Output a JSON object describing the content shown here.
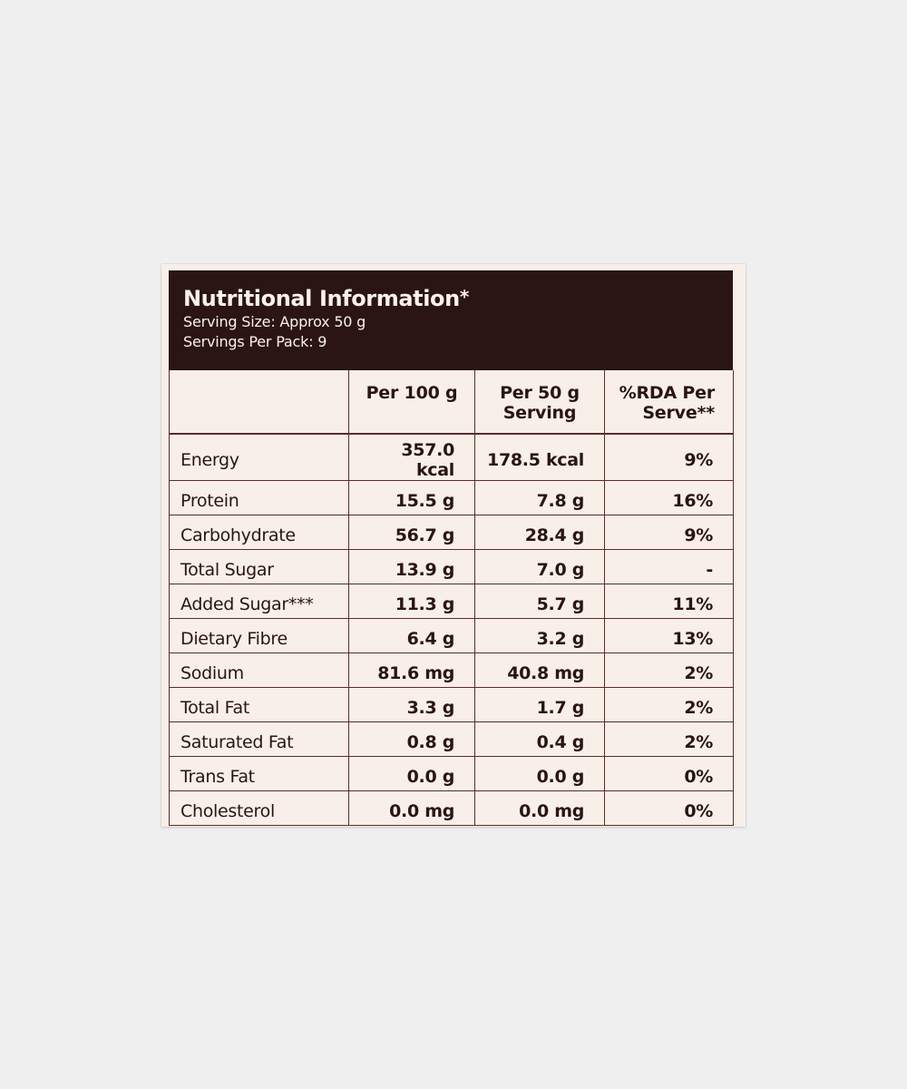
{
  "header": {
    "title": "Nutritional Information",
    "title_mark": "*",
    "serving_size": "Serving Size: Approx 50 g",
    "servings_per_pack": "Servings Per Pack: 9"
  },
  "columns": {
    "nutrient": "",
    "per100": "Per 100 g",
    "per50_line1": "Per 50 g",
    "per50_line2": "Serving",
    "rda_line1": "%RDA Per",
    "rda_line2": "Serve**"
  },
  "rows": [
    {
      "name": "Energy",
      "per100": "357.0 kcal",
      "per50": "178.5 kcal",
      "rda": "9%"
    },
    {
      "name": "Protein",
      "per100": "15.5 g",
      "per50": "7.8 g",
      "rda": "16%"
    },
    {
      "name": "Carbohydrate",
      "per100": "56.7 g",
      "per50": "28.4 g",
      "rda": "9%"
    },
    {
      "name": "Total Sugar",
      "per100": "13.9 g",
      "per50": "7.0 g",
      "rda": "-"
    },
    {
      "name": "Added Sugar***",
      "per100": "11.3 g",
      "per50": "5.7 g",
      "rda": "11%"
    },
    {
      "name": "Dietary Fibre",
      "per100": "6.4 g",
      "per50": "3.2 g",
      "rda": "13%"
    },
    {
      "name": "Sodium",
      "per100": "81.6 mg",
      "per50": "40.8 mg",
      "rda": "2%"
    },
    {
      "name": "Total Fat",
      "per100": "3.3 g",
      "per50": "1.7 g",
      "rda": "2%"
    },
    {
      "name": "Saturated Fat",
      "per100": "0.8 g",
      "per50": "0.4 g",
      "rda": "2%"
    },
    {
      "name": "Trans Fat",
      "per100": "0.0 g",
      "per50": "0.0 g",
      "rda": "0%"
    },
    {
      "name": "Cholesterol",
      "per100": "0.0 mg",
      "per50": "0.0 mg",
      "rda": "0%"
    }
  ],
  "colors": {
    "background": "#efefef",
    "card": "#f7efe8",
    "header_bg": "#2a1414",
    "border": "#5c2a2a"
  }
}
